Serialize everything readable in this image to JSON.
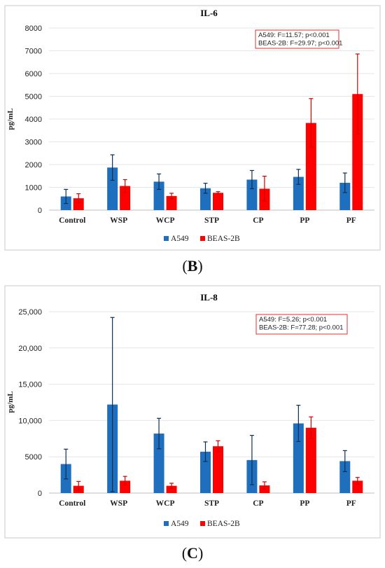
{
  "chart_data": [
    {
      "type": "bar",
      "title": "IL-6",
      "ylabel": "pg/mL",
      "ylim": [
        0,
        8000
      ],
      "yticks": [
        "0",
        "1000",
        "2000",
        "3000",
        "4000",
        "5000",
        "6000",
        "7000",
        "8000"
      ],
      "ytick_values": [
        0,
        1000,
        2000,
        3000,
        4000,
        5000,
        6000,
        7000,
        8000
      ],
      "categories": [
        "Control",
        "WSP",
        "WCP",
        "STP",
        "CP",
        "PP",
        "PF"
      ],
      "series": [
        {
          "name": "A549",
          "color": "#1f6fbf",
          "values": [
            600,
            1870,
            1250,
            960,
            1340,
            1460,
            1200
          ],
          "errors": [
            310,
            560,
            340,
            220,
            400,
            330,
            430
          ]
        },
        {
          "name": "BEAS-2B",
          "color": "#ff0000",
          "values": [
            520,
            1060,
            620,
            760,
            940,
            3830,
            5100
          ],
          "errors": [
            200,
            280,
            120,
            50,
            550,
            1070,
            1760
          ]
        }
      ],
      "annotation": [
        "A549: F=11.57; p<0.001",
        "BEAS-2B: F=29.97; p<0.001"
      ],
      "legend_position": "bottom",
      "caption_letter": "B"
    },
    {
      "type": "bar",
      "title": "IL-8",
      "ylabel": "pg/mL",
      "ylim": [
        0,
        25000
      ],
      "yticks": [
        "0",
        "5000",
        "10,000",
        "15,000",
        "20,000",
        "25,000"
      ],
      "ytick_values": [
        0,
        5000,
        10000,
        15000,
        20000,
        25000
      ],
      "categories": [
        "Control",
        "WSP",
        "WCP",
        "STP",
        "CP",
        "PP",
        "PF"
      ],
      "series": [
        {
          "name": "A549",
          "color": "#1f6fbf",
          "values": [
            4000,
            12200,
            8200,
            5700,
            4550,
            9600,
            4400
          ],
          "errors": [
            2050,
            12000,
            2100,
            1350,
            3400,
            2500,
            1450
          ]
        },
        {
          "name": "BEAS-2B",
          "color": "#ff0000",
          "values": [
            1000,
            1700,
            1000,
            6450,
            1050,
            9000,
            1700
          ],
          "errors": [
            600,
            600,
            350,
            750,
            500,
            1500,
            450
          ]
        }
      ],
      "annotation": [
        "A549: F=5.26; p<0.001",
        "BEAS-2B: F=77.28; p<0.001"
      ],
      "legend_position": "bottom",
      "caption_letter": "C"
    }
  ],
  "captions": {
    "b": {
      "open": "(",
      "letter": "B",
      "close": ")"
    },
    "c": {
      "open": "(",
      "letter": "C",
      "close": ")"
    }
  }
}
